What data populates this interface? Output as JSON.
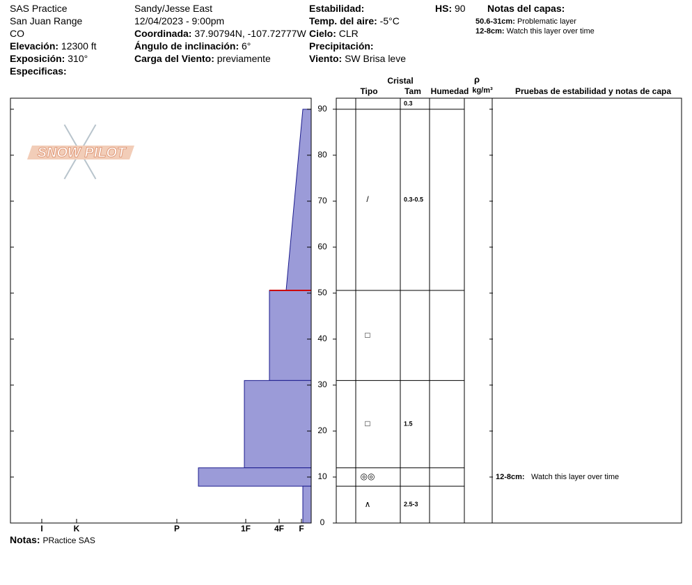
{
  "header": {
    "left": [
      {
        "value": "SAS Practice"
      },
      {
        "value": "San Juan Range"
      },
      {
        "value": "CO"
      },
      {
        "label": "Elevación:",
        "value": "12300 ft"
      },
      {
        "label": "Exposición:",
        "value": "310°"
      },
      {
        "label": "Especificas:"
      }
    ],
    "middle": [
      {
        "value": "Sandy/Jesse East"
      },
      {
        "value": "12/04/2023 - 9:00pm"
      },
      {
        "label": "Coordinada:",
        "value": "37.90794N, -107.72777W"
      },
      {
        "label": "Ángulo de inclinación:",
        "value": "6°"
      },
      {
        "label": "Carga del Viento:",
        "value": "previamente"
      }
    ],
    "right": [
      {
        "label": "Estabilidad:"
      },
      {
        "label": "Temp. del aire:",
        "value": "-5°C"
      },
      {
        "label": "Cielo:",
        "value": "CLR"
      },
      {
        "label": "Precipitación:"
      },
      {
        "label": "Viento:",
        "value": "SW Brisa leve"
      }
    ],
    "hs": {
      "label": "HS:",
      "value": "90"
    },
    "layer_notes": {
      "title": "Notas del capas:",
      "items": [
        {
          "label": "50.6-31cm:",
          "value": "Problematic layer"
        },
        {
          "label": "12-8cm:",
          "value": "Watch this layer over time"
        }
      ]
    }
  },
  "logo": "SNOW PILOT",
  "table": {
    "crystal": "Cristal",
    "type": "Tipo",
    "size": "Tam",
    "moisture": "Humedad",
    "density_symbol": "ρ",
    "density_unit": "kg/m³",
    "tests": "Pruebas de estabilidad y notas de capa"
  },
  "chart_data": {
    "type": "profile",
    "color": "#9b9bd8",
    "edge_color": "#1a1a8c",
    "flag_color": "#cc0000",
    "ylim": [
      0,
      92.4
    ],
    "yticks": [
      0,
      10,
      20,
      30,
      40,
      50,
      60,
      70,
      80,
      90
    ],
    "xlim": [
      0,
      432
    ],
    "xticks": [
      {
        "value": 387,
        "label": "I"
      },
      {
        "value": 337,
        "label": "K"
      },
      {
        "value": 193,
        "label": "P"
      },
      {
        "value": 94,
        "label": "1F"
      },
      {
        "value": 46,
        "label": "4F"
      },
      {
        "value": 14,
        "label": "F"
      }
    ],
    "flag_depth": 50.6,
    "layers": [
      {
        "top": 92.4,
        "bottom": 90,
        "size": "0.3"
      },
      {
        "top": 90,
        "bottom": 50.6,
        "hardness_top": 12,
        "hardness_bottom": 36,
        "grain": "/",
        "size": "0.3-0.5"
      },
      {
        "top": 50.6,
        "bottom": 31,
        "hardness_top": 60,
        "hardness_bottom": 60,
        "grain": "□"
      },
      {
        "top": 31,
        "bottom": 12,
        "hardness_top": 96,
        "hardness_bottom": 96,
        "grain": "□",
        "size": "1.5"
      },
      {
        "top": 12,
        "bottom": 8,
        "hardness_top": 162,
        "hardness_bottom": 162,
        "grain": "◎◎",
        "note_label": "12-8cm:",
        "note": "Watch this layer over time"
      },
      {
        "top": 8,
        "bottom": 0,
        "hardness_top": 12,
        "hardness_bottom": 12,
        "grain": "∧",
        "size": "2.5-3"
      }
    ]
  },
  "footer": {
    "label": "Notas:",
    "value": "PRactice SAS"
  }
}
